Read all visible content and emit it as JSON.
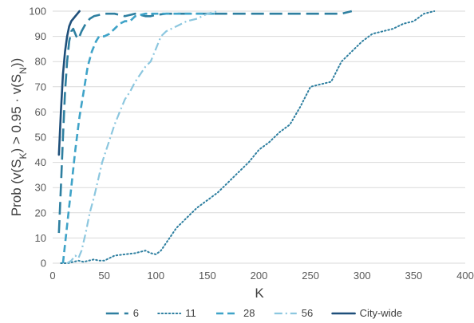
{
  "chart_data": {
    "type": "line",
    "xlabel": "K",
    "ylabel": {
      "prefix": "Prob (v(S",
      "sub1": "K",
      "mid": ") > 0.95 · v(S",
      "sub2": "N",
      "suffix": "))"
    },
    "xlim": [
      0,
      400
    ],
    "ylim": [
      0,
      100
    ],
    "xticks": [
      "0",
      "50",
      "100",
      "150",
      "200",
      "250",
      "300",
      "350",
      "400"
    ],
    "yticks": [
      "0",
      "10",
      "20",
      "30",
      "40",
      "50",
      "60",
      "70",
      "80",
      "90",
      "100"
    ],
    "grid": "horizontal",
    "legend_position": "bottom",
    "series": [
      {
        "name": "6",
        "color": "#2e7fa0",
        "dash": "long-dash",
        "points": [
          [
            6,
            12
          ],
          [
            8,
            30
          ],
          [
            10,
            50
          ],
          [
            12,
            68
          ],
          [
            14,
            80
          ],
          [
            16,
            88
          ],
          [
            18,
            92
          ],
          [
            20,
            93
          ],
          [
            23,
            90
          ],
          [
            25,
            89
          ],
          [
            28,
            92
          ],
          [
            32,
            95
          ],
          [
            36,
            97
          ],
          [
            40,
            98
          ],
          [
            45,
            98.5
          ],
          [
            50,
            99
          ],
          [
            55,
            99
          ],
          [
            60,
            99
          ],
          [
            65,
            98.5
          ],
          [
            70,
            98
          ],
          [
            75,
            98.5
          ],
          [
            80,
            99
          ],
          [
            85,
            98.5
          ],
          [
            90,
            98
          ],
          [
            95,
            98
          ],
          [
            100,
            98.5
          ],
          [
            110,
            99
          ],
          [
            130,
            99
          ],
          [
            160,
            99
          ],
          [
            200,
            99
          ],
          [
            240,
            99
          ],
          [
            280,
            99
          ],
          [
            290,
            100
          ]
        ]
      },
      {
        "name": "11",
        "color": "#2e7fa0",
        "dash": "dotted",
        "points": [
          [
            8,
            0
          ],
          [
            15,
            0
          ],
          [
            20,
            0.5
          ],
          [
            25,
            1
          ],
          [
            30,
            0.5
          ],
          [
            35,
            1
          ],
          [
            40,
            1.5
          ],
          [
            45,
            1
          ],
          [
            50,
            1
          ],
          [
            55,
            2
          ],
          [
            60,
            3
          ],
          [
            70,
            3.5
          ],
          [
            80,
            4
          ],
          [
            90,
            5
          ],
          [
            95,
            4
          ],
          [
            100,
            3.5
          ],
          [
            105,
            5
          ],
          [
            110,
            8
          ],
          [
            120,
            14
          ],
          [
            130,
            18
          ],
          [
            140,
            22
          ],
          [
            150,
            25
          ],
          [
            160,
            28
          ],
          [
            170,
            32
          ],
          [
            180,
            36
          ],
          [
            190,
            40
          ],
          [
            200,
            45
          ],
          [
            210,
            48
          ],
          [
            220,
            52
          ],
          [
            230,
            55
          ],
          [
            240,
            62
          ],
          [
            250,
            70
          ],
          [
            260,
            71
          ],
          [
            270,
            72
          ],
          [
            280,
            80
          ],
          [
            290,
            84
          ],
          [
            300,
            88
          ],
          [
            310,
            91
          ],
          [
            320,
            92
          ],
          [
            330,
            93
          ],
          [
            340,
            95
          ],
          [
            350,
            96
          ],
          [
            360,
            99
          ],
          [
            370,
            100
          ]
        ]
      },
      {
        "name": "28",
        "color": "#3fa3c8",
        "dash": "dash",
        "points": [
          [
            10,
            0
          ],
          [
            14,
            15
          ],
          [
            18,
            30
          ],
          [
            22,
            45
          ],
          [
            26,
            58
          ],
          [
            30,
            68
          ],
          [
            34,
            78
          ],
          [
            38,
            84
          ],
          [
            42,
            88
          ],
          [
            45,
            90
          ],
          [
            50,
            90
          ],
          [
            55,
            91
          ],
          [
            60,
            93
          ],
          [
            65,
            95
          ],
          [
            70,
            96
          ],
          [
            75,
            96
          ],
          [
            80,
            98
          ],
          [
            90,
            99
          ],
          [
            100,
            99
          ],
          [
            120,
            99
          ],
          [
            140,
            99
          ],
          [
            160,
            99
          ]
        ]
      },
      {
        "name": "56",
        "color": "#8cc7df",
        "dash": "dash-dot",
        "points": [
          [
            14,
            0
          ],
          [
            18,
            1
          ],
          [
            22,
            3
          ],
          [
            25,
            2
          ],
          [
            28,
            5
          ],
          [
            32,
            12
          ],
          [
            36,
            20
          ],
          [
            40,
            26
          ],
          [
            44,
            33
          ],
          [
            48,
            40
          ],
          [
            52,
            45
          ],
          [
            56,
            50
          ],
          [
            60,
            55
          ],
          [
            65,
            60
          ],
          [
            70,
            65
          ],
          [
            75,
            68
          ],
          [
            80,
            72
          ],
          [
            85,
            75
          ],
          [
            90,
            78
          ],
          [
            95,
            80
          ],
          [
            100,
            85
          ],
          [
            105,
            90
          ],
          [
            110,
            92
          ],
          [
            120,
            94
          ],
          [
            130,
            96
          ],
          [
            140,
            97
          ],
          [
            150,
            99
          ],
          [
            160,
            100
          ]
        ]
      },
      {
        "name": "City-wide",
        "color": "#1e4f7a",
        "dash": "solid",
        "points": [
          [
            6,
            43
          ],
          [
            8,
            60
          ],
          [
            10,
            75
          ],
          [
            12,
            84
          ],
          [
            14,
            90
          ],
          [
            16,
            94
          ],
          [
            18,
            96
          ],
          [
            20,
            97
          ],
          [
            22,
            98
          ],
          [
            24,
            99
          ],
          [
            26,
            100
          ]
        ]
      }
    ]
  }
}
